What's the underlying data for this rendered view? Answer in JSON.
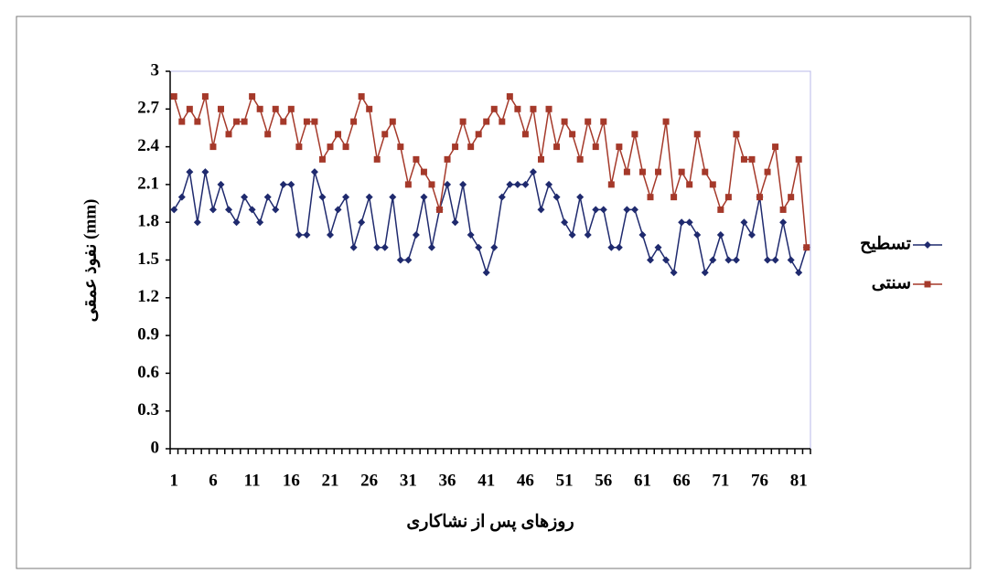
{
  "chart_data": {
    "type": "line",
    "y_label": "نفوذ عمقی (mm)",
    "x_label": "روزهای پس از نشاکاری",
    "x": [
      1,
      2,
      3,
      4,
      5,
      6,
      7,
      8,
      9,
      10,
      11,
      12,
      13,
      14,
      15,
      16,
      17,
      18,
      19,
      20,
      21,
      22,
      23,
      24,
      25,
      26,
      27,
      28,
      29,
      30,
      31,
      32,
      33,
      34,
      35,
      36,
      37,
      38,
      39,
      40,
      41,
      42,
      43,
      44,
      45,
      46,
      47,
      48,
      49,
      50,
      51,
      52,
      53,
      54,
      55,
      56,
      57,
      58,
      59,
      60,
      61,
      62,
      63,
      64,
      65,
      66,
      67,
      68,
      69,
      70,
      71,
      72,
      73,
      74,
      75,
      76,
      77,
      78,
      79,
      80,
      81,
      82
    ],
    "xlim": [
      0.5,
      82.5
    ],
    "xticks": [
      1,
      6,
      11,
      16,
      21,
      26,
      31,
      36,
      41,
      46,
      51,
      56,
      61,
      66,
      71,
      76,
      81
    ],
    "ylim": [
      0,
      3
    ],
    "yticks": [
      0,
      0.3,
      0.6,
      0.9,
      1.2,
      1.5,
      1.8,
      2.1,
      2.4,
      2.7,
      3
    ],
    "series": [
      {
        "name": "تسطیح",
        "color": "#1f2a6e",
        "marker": "diamond",
        "values": [
          1.9,
          2.0,
          2.2,
          1.8,
          2.2,
          1.9,
          2.1,
          1.9,
          1.8,
          2.0,
          1.9,
          1.8,
          2.0,
          1.9,
          2.1,
          2.1,
          1.7,
          1.7,
          2.2,
          2.0,
          1.7,
          1.9,
          2.0,
          1.6,
          1.8,
          2.0,
          1.6,
          1.6,
          2.0,
          1.5,
          1.5,
          1.7,
          2.0,
          1.6,
          1.9,
          2.1,
          1.8,
          2.1,
          1.7,
          1.6,
          1.4,
          1.6,
          2.0,
          2.1,
          2.1,
          2.1,
          2.2,
          1.9,
          2.1,
          2.0,
          1.8,
          1.7,
          2.0,
          1.7,
          1.9,
          1.9,
          1.6,
          1.6,
          1.9,
          1.9,
          1.7,
          1.5,
          1.6,
          1.5,
          1.4,
          1.8,
          1.8,
          1.7,
          1.4,
          1.5,
          1.7,
          1.5,
          1.5,
          1.8,
          1.7,
          2.0,
          1.5,
          1.5,
          1.8,
          1.5,
          1.4,
          1.6
        ]
      },
      {
        "name": "سنتی",
        "color": "#a5392a",
        "marker": "square",
        "values": [
          2.8,
          2.6,
          2.7,
          2.6,
          2.8,
          2.4,
          2.7,
          2.5,
          2.6,
          2.6,
          2.8,
          2.7,
          2.5,
          2.7,
          2.6,
          2.7,
          2.4,
          2.6,
          2.6,
          2.3,
          2.4,
          2.5,
          2.4,
          2.6,
          2.8,
          2.7,
          2.3,
          2.5,
          2.6,
          2.4,
          2.1,
          2.3,
          2.2,
          2.1,
          1.9,
          2.3,
          2.4,
          2.6,
          2.4,
          2.5,
          2.6,
          2.7,
          2.6,
          2.8,
          2.7,
          2.5,
          2.7,
          2.3,
          2.7,
          2.4,
          2.6,
          2.5,
          2.3,
          2.6,
          2.4,
          2.6,
          2.1,
          2.4,
          2.2,
          2.5,
          2.2,
          2.0,
          2.2,
          2.6,
          2.0,
          2.2,
          2.1,
          2.5,
          2.2,
          2.1,
          1.9,
          2.0,
          2.5,
          2.3,
          2.3,
          2.0,
          2.2,
          2.4,
          1.9,
          2.0,
          2.3,
          1.6
        ]
      }
    ]
  }
}
